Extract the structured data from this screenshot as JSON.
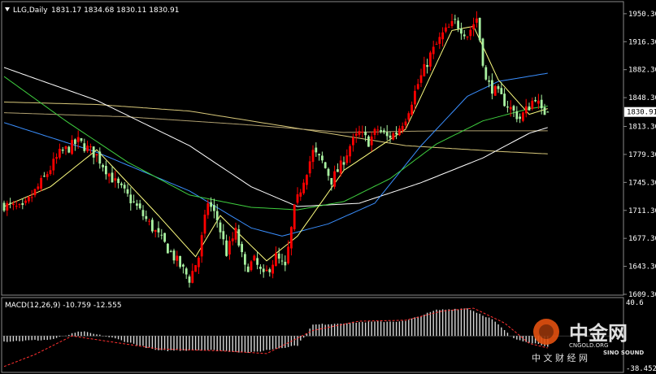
{
  "header": {
    "symbol": "LLG,Daily",
    "ohlc": "1831.17 1834.68 1830.11 1830.91"
  },
  "price_axis": {
    "labels": [
      "1950.30",
      "1916.30",
      "1882.30",
      "1848.30",
      "1813.30",
      "1779.30",
      "1745.30",
      "1711.30",
      "1677.30",
      "1643.30",
      "1609.30"
    ],
    "current_price": "1830.91"
  },
  "macd_panel": {
    "title": "MACD(12,26,9) -10.759 -12.555",
    "axis_labels": [
      "40.6",
      "-38.452"
    ]
  },
  "watermark": {
    "logo_text": "中金网",
    "url_text": "CNGOLD.ORG",
    "tagline": "中 文 财 经 网",
    "brand_text": "SINO SOUND"
  },
  "colors": {
    "background": "#000000",
    "bull": "#ff0000",
    "bear": "#a8f0a0",
    "ma_fast": "#ffff80",
    "ma_mid": "#3fcf3f",
    "ma_slow": "#3a8fff",
    "ma_long": "#ffffff",
    "ma_200": "#d8c87a",
    "signal": "#ff3030"
  },
  "chart_data": {
    "type": "candlestick",
    "symbol": "LLG",
    "timeframe": "Daily",
    "ylim": [
      1609.3,
      1964
    ],
    "y_ticks": [
      1950.3,
      1916.3,
      1882.3,
      1848.3,
      1813.3,
      1779.3,
      1745.3,
      1711.3,
      1677.3,
      1643.3,
      1609.3
    ],
    "last_price": 1830.91,
    "close_anchors": [
      [
        0,
        1718
      ],
      [
        6,
        1712
      ],
      [
        12,
        1745
      ],
      [
        18,
        1780
      ],
      [
        24,
        1795
      ],
      [
        30,
        1778
      ],
      [
        36,
        1745
      ],
      [
        42,
        1720
      ],
      [
        48,
        1690
      ],
      [
        54,
        1660
      ],
      [
        60,
        1628
      ],
      [
        63,
        1655
      ],
      [
        66,
        1722
      ],
      [
        69,
        1700
      ],
      [
        72,
        1660
      ],
      [
        75,
        1685
      ],
      [
        78,
        1640
      ],
      [
        81,
        1650
      ],
      [
        84,
        1630
      ],
      [
        88,
        1655
      ],
      [
        91,
        1640
      ],
      [
        94,
        1712
      ],
      [
        97,
        1750
      ],
      [
        100,
        1782
      ],
      [
        103,
        1770
      ],
      [
        106,
        1748
      ],
      [
        109,
        1765
      ],
      [
        112,
        1790
      ],
      [
        115,
        1805
      ],
      [
        118,
        1795
      ],
      [
        121,
        1810
      ],
      [
        124,
        1800
      ],
      [
        127,
        1806
      ],
      [
        130,
        1825
      ],
      [
        134,
        1865
      ],
      [
        138,
        1900
      ],
      [
        142,
        1925
      ],
      [
        146,
        1940
      ],
      [
        150,
        1925
      ],
      [
        153,
        1945
      ],
      [
        156,
        1868
      ],
      [
        160,
        1852
      ],
      [
        164,
        1835
      ],
      [
        167,
        1823
      ],
      [
        170,
        1838
      ],
      [
        172,
        1850
      ],
      [
        174,
        1830
      ],
      [
        176,
        1831
      ]
    ],
    "ma_anchors": {
      "fast": [
        [
          0,
          1716
        ],
        [
          15,
          1740
        ],
        [
          30,
          1785
        ],
        [
          50,
          1705
        ],
        [
          62,
          1655
        ],
        [
          70,
          1705
        ],
        [
          85,
          1650
        ],
        [
          95,
          1680
        ],
        [
          110,
          1760
        ],
        [
          130,
          1810
        ],
        [
          145,
          1930
        ],
        [
          152,
          1935
        ],
        [
          160,
          1870
        ],
        [
          170,
          1828
        ],
        [
          176,
          1835
        ]
      ],
      "mid": [
        [
          0,
          1874
        ],
        [
          20,
          1820
        ],
        [
          40,
          1770
        ],
        [
          60,
          1730
        ],
        [
          80,
          1715
        ],
        [
          95,
          1712
        ],
        [
          110,
          1722
        ],
        [
          125,
          1750
        ],
        [
          140,
          1792
        ],
        [
          155,
          1820
        ],
        [
          170,
          1835
        ],
        [
          176,
          1838
        ]
      ],
      "slow": [
        [
          0,
          1818
        ],
        [
          30,
          1782
        ],
        [
          60,
          1735
        ],
        [
          80,
          1690
        ],
        [
          90,
          1680
        ],
        [
          105,
          1695
        ],
        [
          120,
          1720
        ],
        [
          135,
          1790
        ],
        [
          150,
          1850
        ],
        [
          160,
          1868
        ],
        [
          176,
          1878
        ]
      ],
      "long": [
        [
          0,
          1885
        ],
        [
          30,
          1845
        ],
        [
          60,
          1790
        ],
        [
          80,
          1740
        ],
        [
          95,
          1716
        ],
        [
          115,
          1720
        ],
        [
          135,
          1745
        ],
        [
          155,
          1775
        ],
        [
          170,
          1805
        ],
        [
          176,
          1812
        ]
      ],
      "ma200": [
        [
          0,
          1843
        ],
        [
          30,
          1840
        ],
        [
          60,
          1832
        ],
        [
          80,
          1820
        ],
        [
          100,
          1808
        ],
        [
          130,
          1790
        ],
        [
          160,
          1783
        ],
        [
          176,
          1780
        ]
      ],
      "ma100": [
        [
          0,
          1830
        ],
        [
          40,
          1825
        ],
        [
          80,
          1815
        ],
        [
          110,
          1806
        ],
        [
          140,
          1808
        ],
        [
          160,
          1808
        ],
        [
          176,
          1808
        ]
      ]
    },
    "macd": {
      "ylim": [
        -38.452,
        40.6
      ],
      "histogram_anchors": [
        [
          0,
          -6
        ],
        [
          15,
          -4
        ],
        [
          25,
          5
        ],
        [
          35,
          -2
        ],
        [
          50,
          -16
        ],
        [
          65,
          -15
        ],
        [
          80,
          -18
        ],
        [
          95,
          -10
        ],
        [
          100,
          12
        ],
        [
          115,
          15
        ],
        [
          130,
          16
        ],
        [
          140,
          28
        ],
        [
          150,
          30
        ],
        [
          158,
          18
        ],
        [
          165,
          -3
        ],
        [
          176,
          -11
        ]
      ],
      "signal_anchors": [
        [
          0,
          -33
        ],
        [
          10,
          -20
        ],
        [
          22,
          0
        ],
        [
          32,
          -5
        ],
        [
          50,
          -14
        ],
        [
          70,
          -16
        ],
        [
          85,
          -19
        ],
        [
          100,
          6
        ],
        [
          115,
          16
        ],
        [
          130,
          17
        ],
        [
          142,
          27
        ],
        [
          152,
          30
        ],
        [
          162,
          14
        ],
        [
          170,
          -8
        ],
        [
          176,
          -13
        ]
      ],
      "last_macd": -10.759,
      "last_signal": -12.555
    }
  }
}
